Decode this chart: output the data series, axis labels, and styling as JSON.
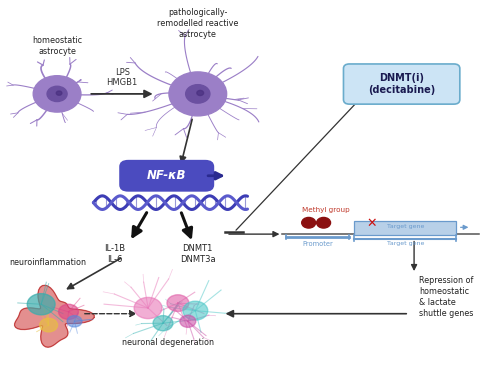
{
  "bg_color": "#ffffff",
  "fig_width": 5.0,
  "fig_height": 3.89,
  "labels": {
    "homeostatic_astrocyte": "homeostatic\nastrocyte",
    "pathological_astrocyte": "pathologically-\nremodelled reactive\nastrocyte",
    "lps_hmgb1": "LPS\nHMGB1",
    "nfkb": "NF-κB",
    "il_1b_il6": "IL-1B\nIL-6",
    "dnmt1_dnmt3a": "DNMT1\nDNMT3a",
    "dnmt_i": "DNMT(i)\n(decitabine)",
    "methyl_group": "Methyl group",
    "promoter": "Promoter",
    "target_gene": "Target gene",
    "neuroinflammation": "neuroinflammation",
    "neuronal_degeneration": "neuronal degeneration",
    "repression": "Repression of\nhomeostatic\n& lactate\nshuttle genes"
  },
  "colors": {
    "arrow_black": "#1a1a1a",
    "nfkb_pill": "#4b4bbf",
    "nfkb_text": "#ffffff",
    "nfkb_arrow": "#2a2a90",
    "dna_strand1": "#3d3db5",
    "dna_strand2": "#5a5acc",
    "astrocyte_body": "#9b7fc7",
    "astrocyte_nucleus": "#6b50a0",
    "astrocyte_nucleus2": "#4a3080",
    "dnmt_box_fill": "#cce4f5",
    "dnmt_box_edge": "#6aaccc",
    "promoter_color": "#6a9acc",
    "target_gene_fill": "#b8d0e8",
    "target_gene_edge": "#6a9acc",
    "methyl_dot": "#8b1010",
    "red_x": "#cc1111",
    "methyl_label": "#c0392b",
    "inhibit_bar": "#1a1a1a"
  }
}
